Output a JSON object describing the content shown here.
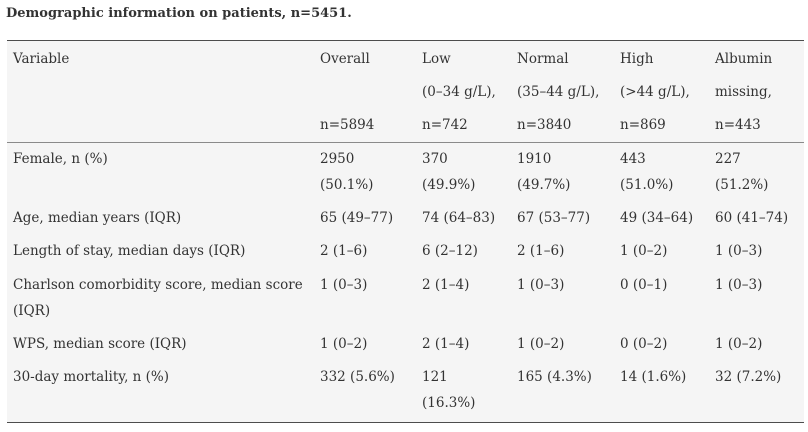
{
  "title": "Demographic information on patients, n=5451.",
  "headers": {
    "variable": "Variable",
    "overall": {
      "line1": "Overall",
      "line3": "n=5894"
    },
    "low": {
      "line1": "Low",
      "line2": "(0–34 g/L),",
      "line3": "n=742"
    },
    "normal": {
      "line1": "Normal",
      "line2": "(35–44 g/L),",
      "line3": "n=3840"
    },
    "high": {
      "line1": "High",
      "line2": "(>44 g/L),",
      "line3": "n=869"
    },
    "missing": {
      "line1": "Albumin",
      "line2": "missing,",
      "line3": "n=443"
    }
  },
  "rows": [
    {
      "label": "Female, n (%)",
      "overall": [
        "2950",
        "(50.1%)"
      ],
      "low": [
        "370",
        "(49.9%)"
      ],
      "normal": [
        "1910",
        "(49.7%)"
      ],
      "high": [
        "443",
        "(51.0%)"
      ],
      "missing": [
        "227",
        "(51.2%)"
      ]
    },
    {
      "label": "Age, median years (IQR)",
      "overall": "65 (49–77)",
      "low": "74 (64–83)",
      "normal": "67 (53–77)",
      "high": "49 (34–64)",
      "missing": "60 (41–74)"
    },
    {
      "label": "Length of stay, median days (IQR)",
      "overall": "2 (1–6)",
      "low": "6 (2–12)",
      "normal": "2 (1–6)",
      "high": "1 (0–2)",
      "missing": "1 (0–3)"
    },
    {
      "label": [
        "Charlson comorbidity score, median score",
        "(IQR)"
      ],
      "overall": "1 (0–3)",
      "low": "2 (1–4)",
      "normal": "1 (0–3)",
      "high": "0 (0–1)",
      "missing": "1 (0–3)"
    },
    {
      "label": "WPS, median score (IQR)",
      "overall": "1 (0–2)",
      "low": "2 (1–4)",
      "normal": "1 (0–2)",
      "high": "0 (0–2)",
      "missing": "1 (0–2)"
    },
    {
      "label": "30-day mortality, n (%)",
      "overall": "332 (5.6%)",
      "low": [
        "121",
        "(16.3%)"
      ],
      "normal": "165 (4.3%)",
      "high": "14 (1.6%)",
      "missing": "32 (7.2%)"
    }
  ]
}
